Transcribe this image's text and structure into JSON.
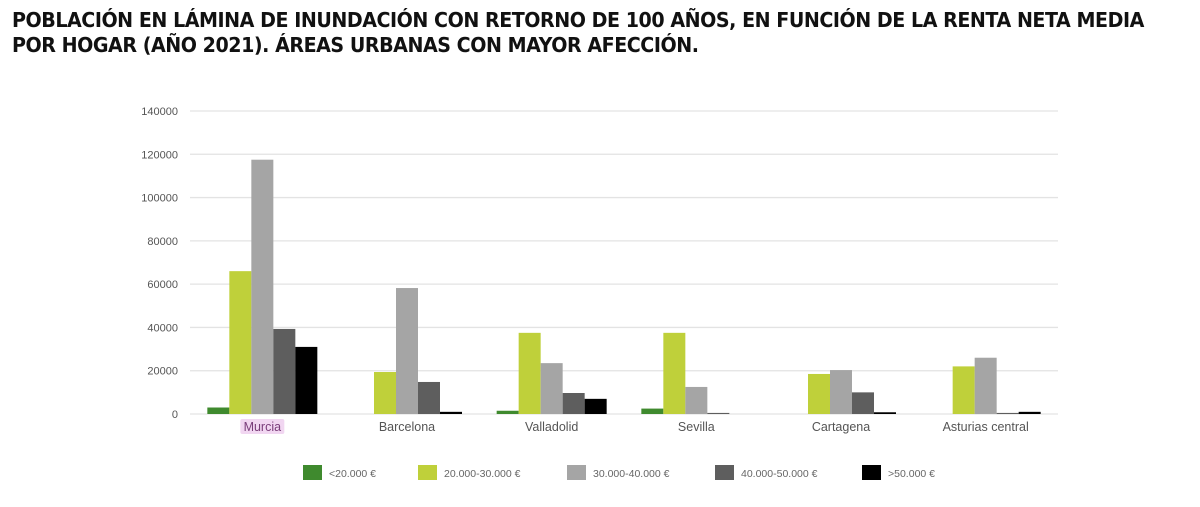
{
  "chart_data": {
    "type": "bar",
    "title_lines": [
      "POBLACIÓN EN LÁMINA DE INUNDACIÓN CON RETORNO DE 100 AÑOS, EN FUNCIÓN DE LA RENTA NETA MEDIA",
      "POR HOGAR (AÑO 2021). ÁREAS URBANAS CON MAYOR AFECCIÓN."
    ],
    "xlabel": "",
    "ylabel": "",
    "ylim": [
      0,
      140000
    ],
    "yticks": [
      "0",
      "20000",
      "40000",
      "60000",
      "80000",
      "100000",
      "120000",
      "140000"
    ],
    "grid": true,
    "legend_position": "bottom",
    "categories": [
      "Murcia",
      "Barcelona",
      "Valladolid",
      "Sevilla",
      "Cartagena",
      "Asturias central"
    ],
    "highlighted_category": "Murcia",
    "series": [
      {
        "name": "<20.000 €",
        "color": "#3f8a2e",
        "values": [
          3000,
          0,
          1500,
          2500,
          0,
          0
        ]
      },
      {
        "name": "20.000-30.000 €",
        "color": "#bfd03a",
        "values": [
          66000,
          19400,
          37500,
          37500,
          18500,
          22000
        ]
      },
      {
        "name": "30.000-40.000 €",
        "color": "#a5a5a5",
        "values": [
          117500,
          58200,
          23500,
          12500,
          20300,
          26000
        ]
      },
      {
        "name": "40.000-50.000 €",
        "color": "#5e5e5e",
        "values": [
          39300,
          14800,
          9700,
          500,
          10000,
          500
        ]
      },
      {
        "name": ">50.000 €",
        "color": "#000000",
        "values": [
          31000,
          1000,
          7000,
          0,
          800,
          1000
        ]
      }
    ]
  }
}
